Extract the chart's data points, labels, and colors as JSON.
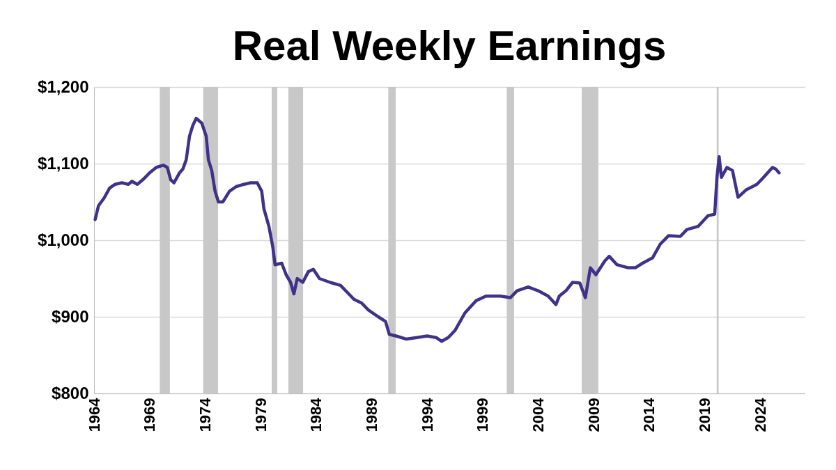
{
  "chart_data": {
    "type": "line",
    "title": "Real Weekly Earnings",
    "x": [
      1964.1,
      1964.4,
      1964.9,
      1965.4,
      1965.9,
      1966.5,
      1967.1,
      1967.4,
      1967.9,
      1968.4,
      1969.0,
      1969.6,
      1970.25,
      1970.6,
      1970.9,
      1971.2,
      1971.7,
      1972.0,
      1972.3,
      1972.6,
      1972.9,
      1973.2,
      1973.7,
      1974.1,
      1974.3,
      1974.6,
      1974.9,
      1975.2,
      1975.6,
      1976.2,
      1976.8,
      1977.5,
      1978.1,
      1978.7,
      1979.1,
      1979.3,
      1979.75,
      1980.1,
      1980.3,
      1980.9,
      1981.3,
      1981.7,
      1982.0,
      1982.3,
      1982.8,
      1983.3,
      1983.75,
      1984.3,
      1985.25,
      1986.2,
      1986.8,
      1987.4,
      1988.1,
      1988.7,
      1989.6,
      1990.25,
      1990.6,
      1991.2,
      1992.1,
      1993.1,
      1994.0,
      1994.8,
      1995.3,
      1995.9,
      1996.5,
      1997.4,
      1998.4,
      1999.3,
      2000.6,
      2001.5,
      2002.1,
      2003.1,
      2004.0,
      2004.9,
      2005.6,
      2005.9,
      2006.5,
      2007.1,
      2007.75,
      2008.25,
      2008.7,
      2009.2,
      2010.0,
      2010.4,
      2011.1,
      2012.1,
      2012.75,
      2013.4,
      2014.3,
      2015.0,
      2015.75,
      2016.8,
      2017.4,
      2018.4,
      2019.3,
      2019.9,
      2020.1,
      2020.3,
      2020.5,
      2021.0,
      2021.5,
      2022.0,
      2022.75,
      2023.7,
      2024.3,
      2025.1,
      2025.4,
      2025.7
    ],
    "series": [
      {
        "color": "#3f3288",
        "values": [
          1027,
          1045,
          1055,
          1068,
          1073,
          1075,
          1073,
          1077,
          1073,
          1079,
          1088,
          1095,
          1098,
          1095,
          1079,
          1075,
          1088,
          1093,
          1105,
          1136,
          1150,
          1159,
          1153,
          1136,
          1105,
          1091,
          1064,
          1050,
          1050,
          1064,
          1070,
          1073,
          1075,
          1075,
          1064,
          1041,
          1018,
          991,
          968,
          970,
          955,
          945,
          930,
          950,
          945,
          959,
          962,
          950,
          945,
          941,
          932,
          923,
          918,
          909,
          900,
          894,
          877,
          875,
          871,
          873,
          875,
          873,
          868,
          873,
          882,
          905,
          921,
          927,
          927,
          925,
          934,
          939,
          934,
          927,
          916,
          927,
          934,
          945,
          944,
          925,
          964,
          955,
          973,
          979,
          968,
          964,
          964,
          970,
          977,
          995,
          1006,
          1005,
          1014,
          1018,
          1032,
          1034,
          1082,
          1109,
          1082,
          1095,
          1091,
          1056,
          1066,
          1073,
          1082,
          1095,
          1093,
          1088
        ]
      }
    ],
    "xlim": [
      1964,
      2028
    ],
    "xticks": [
      1964,
      1969,
      1974,
      1979,
      1984,
      1989,
      1994,
      1999,
      2004,
      2009,
      2014,
      2019,
      2024
    ],
    "ylim": [
      800,
      1200
    ],
    "yticks": [
      {
        "value": 800,
        "label": "$800"
      },
      {
        "value": 900,
        "label": "$900"
      },
      {
        "value": 1000,
        "label": "$1,000"
      },
      {
        "value": 1100,
        "label": "$1,100"
      },
      {
        "value": 1200,
        "label": "$1,200"
      }
    ],
    "grid": "y",
    "marker": "none",
    "line_style": "solid",
    "bands": [
      {
        "axis": "x",
        "from": 1969.92,
        "to": 1970.83,
        "color": "#c8c8c8"
      },
      {
        "axis": "x",
        "from": 1973.83,
        "to": 1975.17,
        "color": "#c8c8c8"
      },
      {
        "axis": "x",
        "from": 1980.0,
        "to": 1980.5,
        "color": "#c8c8c8"
      },
      {
        "axis": "x",
        "from": 1981.5,
        "to": 1982.83,
        "color": "#c8c8c8"
      },
      {
        "axis": "x",
        "from": 1990.5,
        "to": 1991.17,
        "color": "#c8c8c8"
      },
      {
        "axis": "x",
        "from": 2001.17,
        "to": 2001.83,
        "color": "#c8c8c8"
      },
      {
        "axis": "x",
        "from": 2007.92,
        "to": 2009.42,
        "color": "#c8c8c8"
      },
      {
        "axis": "x",
        "from": 2020.08,
        "to": 2020.25,
        "color": "#c8c8c8"
      }
    ]
  }
}
